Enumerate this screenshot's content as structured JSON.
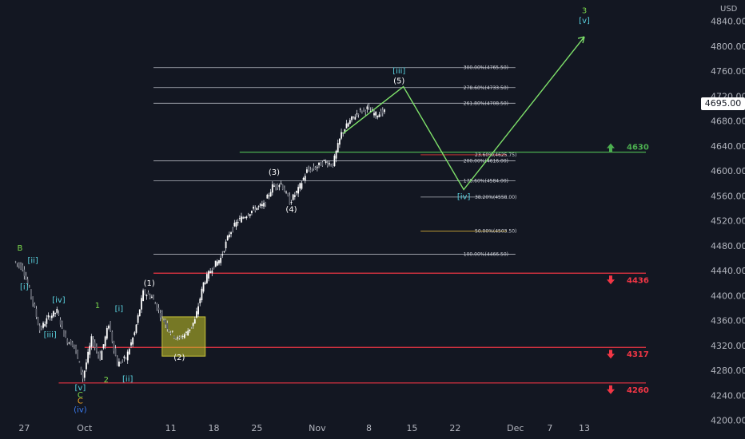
{
  "chart_data": {
    "type": "candlestick",
    "currency": "USD",
    "last_price": "4695.00",
    "y_range": [
      4190,
      4860
    ],
    "y_ticks": [
      "4200.00",
      "4240.00",
      "4280.00",
      "4320.00",
      "4360.00",
      "4400.00",
      "4440.00",
      "4480.00",
      "4520.00",
      "4560.00",
      "4600.00",
      "4640.00",
      "4680.00",
      "4720.00",
      "4760.00",
      "4800.00",
      "4840.00"
    ],
    "x_ticks": [
      {
        "label": "27",
        "t": -2
      },
      {
        "label": "Oct",
        "t": 5
      },
      {
        "label": "11",
        "t": 15
      },
      {
        "label": "18",
        "t": 20
      },
      {
        "label": "25",
        "t": 25
      },
      {
        "label": "Nov",
        "t": 32
      },
      {
        "label": "8",
        "t": 38
      },
      {
        "label": "15",
        "t": 43
      },
      {
        "label": "22",
        "t": 48
      },
      {
        "label": "Dec",
        "t": 55
      },
      {
        "label": "7",
        "t": 59
      },
      {
        "label": "13",
        "t": 63
      }
    ],
    "candles_close_path": [
      [
        -3,
        4455
      ],
      [
        -2,
        4445
      ],
      [
        -1,
        4400
      ],
      [
        0,
        4345
      ],
      [
        1,
        4365
      ],
      [
        2,
        4375
      ],
      [
        3,
        4330
      ],
      [
        4,
        4320
      ],
      [
        5,
        4268
      ],
      [
        6,
        4330
      ],
      [
        7,
        4300
      ],
      [
        8,
        4355
      ],
      [
        9,
        4290
      ],
      [
        10,
        4300
      ],
      [
        11,
        4340
      ],
      [
        12,
        4405
      ],
      [
        13,
        4398
      ],
      [
        14,
        4370
      ],
      [
        15,
        4345
      ],
      [
        16,
        4330
      ],
      [
        17,
        4340
      ],
      [
        18,
        4360
      ],
      [
        19,
        4420
      ],
      [
        20,
        4445
      ],
      [
        21,
        4460
      ],
      [
        22,
        4500
      ],
      [
        23,
        4520
      ],
      [
        24,
        4530
      ],
      [
        25,
        4540
      ],
      [
        26,
        4545
      ],
      [
        27,
        4575
      ],
      [
        28,
        4580
      ],
      [
        29,
        4550
      ],
      [
        30,
        4570
      ],
      [
        31,
        4600
      ],
      [
        32,
        4605
      ],
      [
        33,
        4615
      ],
      [
        34,
        4610
      ],
      [
        35,
        4660
      ],
      [
        36,
        4680
      ],
      [
        37,
        4695
      ],
      [
        38,
        4700
      ],
      [
        39,
        4690
      ],
      [
        40,
        4695
      ]
    ],
    "fib_levels": [
      {
        "label": "300.00%(4765.50)",
        "value": 4765.5,
        "color": "#b2b5be",
        "t0": 13,
        "t1": 55
      },
      {
        "label": "278.60%(4733.50)",
        "value": 4733.5,
        "color": "#b2b5be",
        "t0": 13,
        "t1": 55
      },
      {
        "label": "261.80%(4708.50)",
        "value": 4708.5,
        "color": "#b2b5be",
        "t0": 13,
        "t1": 55
      },
      {
        "label": "200.00%(4616.00)",
        "value": 4616.0,
        "color": "#b2b5be",
        "t0": 13,
        "t1": 55
      },
      {
        "label": "178.60%(4584.00)",
        "value": 4584.0,
        "color": "#b2b5be",
        "t0": 13,
        "t1": 55
      },
      {
        "label": "100.00%(4466.50)",
        "value": 4466.5,
        "color": "#b2b5be",
        "t0": 13,
        "t1": 55
      },
      {
        "label": "38.20%(4558.00)",
        "value": 4558.0,
        "color": "#b2b5be",
        "t0": 44,
        "t1": 54
      },
      {
        "label": "50.00%(4503.50)",
        "value": 4503.5,
        "color": "#f0c23b",
        "t0": 44,
        "t1": 54
      },
      {
        "label": "23.60%(4625.75)",
        "value": 4625.75,
        "color": "#e53935",
        "t0": 44,
        "t1": 54
      }
    ],
    "support_levels": [
      {
        "label": "4436",
        "value": 4436,
        "color": "#f23645",
        "t0": 13,
        "arrow": "down"
      },
      {
        "label": "4317",
        "value": 4317,
        "color": "#f23645",
        "t0": 5,
        "arrow": "down"
      },
      {
        "label": "4260",
        "value": 4260,
        "color": "#f23645",
        "t0": 2,
        "arrow": "down"
      },
      {
        "label": "4630",
        "value": 4630,
        "color": "#4caf50",
        "t0": 23,
        "arrow": "up"
      }
    ],
    "projection_path": [
      [
        35,
        4660
      ],
      [
        42,
        4735
      ],
      [
        49,
        4570
      ],
      [
        63,
        4815
      ]
    ],
    "highlight_box": {
      "t0": 14,
      "t1": 19,
      "v0": 4303,
      "v1": 4366
    },
    "wave_labels": [
      {
        "text": "B",
        "t": -2.5,
        "v": 4472,
        "color": "#7bd94c"
      },
      {
        "text": "[ii]",
        "t": -1,
        "v": 4452,
        "color": "#5ad3e0"
      },
      {
        "text": "[i]",
        "t": -2,
        "v": 4410,
        "color": "#5ad3e0"
      },
      {
        "text": "[iv]",
        "t": 2,
        "v": 4389,
        "color": "#5ad3e0"
      },
      {
        "text": "[iii]",
        "t": 1,
        "v": 4333,
        "color": "#5ad3e0"
      },
      {
        "text": "1",
        "t": 6.5,
        "v": 4380,
        "color": "#7bd94c"
      },
      {
        "text": "[v]",
        "t": 4.5,
        "v": 4248,
        "color": "#5ad3e0"
      },
      {
        "text": "C",
        "t": 4.5,
        "v": 4237,
        "color": "#7bd94c"
      },
      {
        "text": "C",
        "t": 4.5,
        "v": 4227,
        "color": "#f5a623"
      },
      {
        "text": "(iv)",
        "t": 4.5,
        "v": 4213,
        "color": "#3a7bf0"
      },
      {
        "text": "2",
        "t": 7.5,
        "v": 4261,
        "color": "#7bd94c"
      },
      {
        "text": "[i]",
        "t": 9,
        "v": 4375,
        "color": "#5ad3e0"
      },
      {
        "text": "[ii]",
        "t": 10,
        "v": 4262,
        "color": "#5ad3e0"
      },
      {
        "text": "(1)",
        "t": 12.5,
        "v": 4416,
        "color": "#ffffff"
      },
      {
        "text": "(2)",
        "t": 16,
        "v": 4297,
        "color": "#ffffff"
      },
      {
        "text": "(3)",
        "t": 27,
        "v": 4594,
        "color": "#ffffff"
      },
      {
        "text": "(4)",
        "t": 29,
        "v": 4534,
        "color": "#ffffff"
      },
      {
        "text": "[iii]",
        "t": 41.5,
        "v": 4756,
        "color": "#5ad3e0"
      },
      {
        "text": "(5)",
        "t": 41.5,
        "v": 4740,
        "color": "#ffffff"
      },
      {
        "text": "[iv]",
        "t": 49,
        "v": 4555,
        "color": "#5ad3e0"
      },
      {
        "text": "3",
        "t": 63,
        "v": 4853,
        "color": "#7bd94c"
      },
      {
        "text": "[v]",
        "t": 63,
        "v": 4837,
        "color": "#5ad3e0"
      }
    ]
  }
}
